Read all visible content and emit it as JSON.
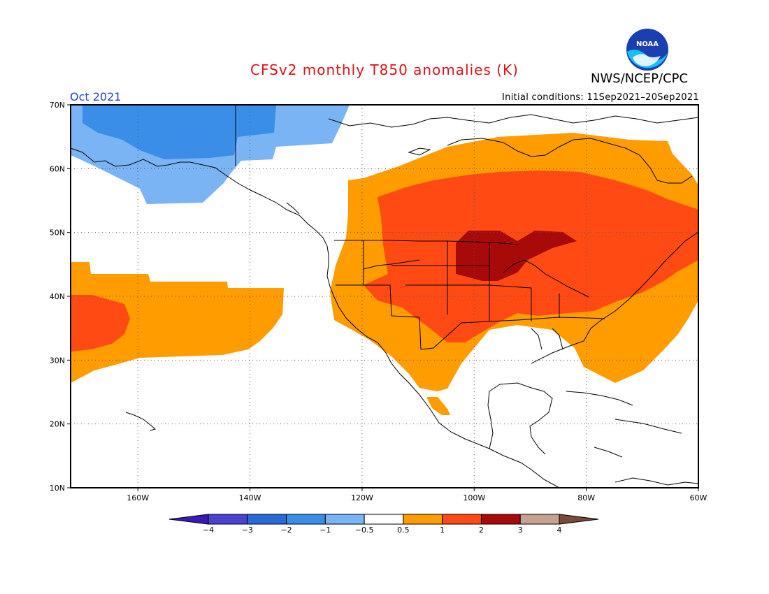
{
  "header": {
    "title": "CFSv2 monthly T850 anomalies (K)",
    "agency": "NWS/NCEP/CPC",
    "period": "Oct 2021",
    "initial_conditions": "Initial conditions: 11Sep2021–20Sep2021",
    "logo_text": "NOAA"
  },
  "map": {
    "lat_range": [
      10,
      70
    ],
    "lon_range": [
      -172,
      -60
    ],
    "lat_labels": [
      "70N",
      "60N",
      "50N",
      "40N",
      "30N",
      "20N",
      "10N"
    ],
    "lon_labels": [
      "160W",
      "140W",
      "120W",
      "100W",
      "80W",
      "60W"
    ],
    "grid": "dotted"
  },
  "colorbar": {
    "labels": [
      "−4",
      "−3",
      "−2",
      "−1",
      "−0.5",
      "0.5",
      "1",
      "2",
      "3",
      "4"
    ],
    "colors": [
      "#3a1ab4",
      "#4a42d0",
      "#2a6ad8",
      "#3a8ee8",
      "#7ab4f4",
      "#ffffff",
      "#ff9c00",
      "#ff4a14",
      "#a80a0a",
      "#c8a090",
      "#7a4a3a"
    ]
  }
}
